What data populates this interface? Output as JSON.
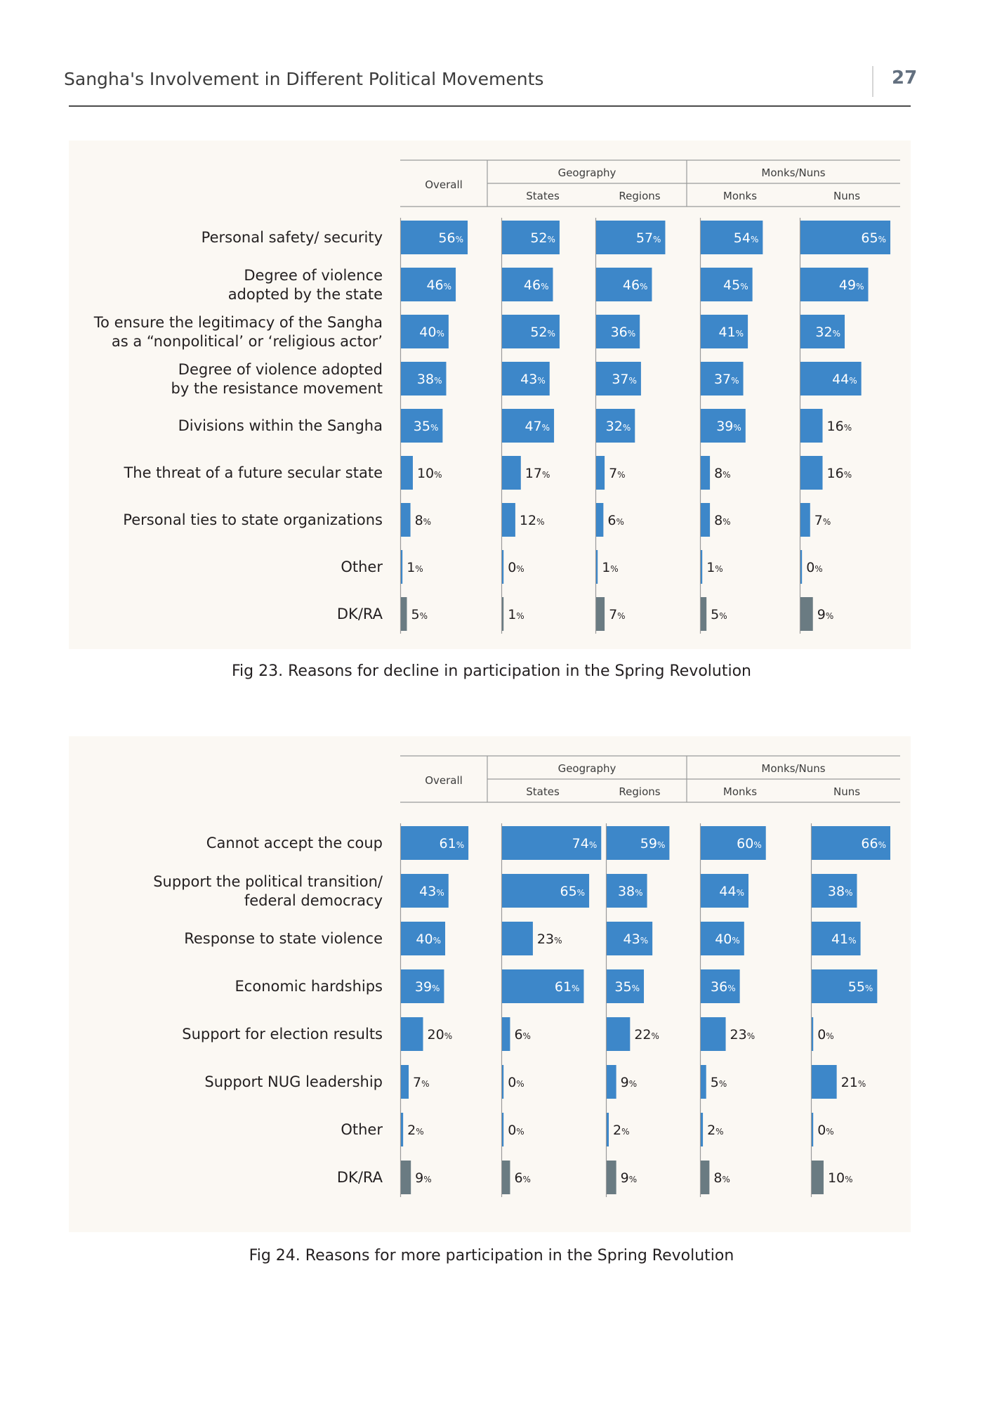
{
  "header": {
    "title": "Sangha's Involvement in Different Political Movements",
    "page_number": "27"
  },
  "colors": {
    "bar": "#3d87c9",
    "dk_bar": "#6a7b82",
    "panel_bg": "#fbf8f3",
    "rule": "#9a9a9a"
  },
  "chart_data": [
    {
      "type": "bar",
      "caption": "Fig 23. Reasons for decline in participation in the Spring Revolution",
      "unit": "%",
      "groups": [
        {
          "label": "Overall",
          "columns": [
            "Overall"
          ]
        },
        {
          "label": "Geography",
          "columns": [
            "States",
            "Regions"
          ]
        },
        {
          "label": "Monks/Nuns",
          "columns": [
            "Monks",
            "Nuns"
          ]
        }
      ],
      "columns": [
        "Overall",
        "States",
        "Regions",
        "Monks",
        "Nuns"
      ],
      "categories": [
        [
          "Personal safety/ security"
        ],
        [
          "Degree of violence",
          "adopted by the state"
        ],
        [
          "To ensure the legitimacy of the Sangha",
          "as a “nonpolitical’ or ‘religious actor’"
        ],
        [
          "Degree of violence adopted",
          "by the resistance movement"
        ],
        [
          "Divisions within the Sangha"
        ],
        [
          "The threat of a future secular state"
        ],
        [
          "Personal ties to state organizations"
        ],
        [
          "Other"
        ],
        [
          "DK/RA"
        ]
      ],
      "values": [
        [
          56,
          52,
          57,
          54,
          65
        ],
        [
          46,
          46,
          46,
          45,
          49
        ],
        [
          40,
          52,
          36,
          41,
          32
        ],
        [
          38,
          43,
          37,
          37,
          44
        ],
        [
          35,
          47,
          32,
          39,
          16
        ],
        [
          10,
          17,
          7,
          8,
          16
        ],
        [
          8,
          12,
          6,
          8,
          7
        ],
        [
          1,
          0,
          1,
          1,
          0
        ],
        [
          5,
          1,
          7,
          5,
          9
        ]
      ],
      "dk_row": 8
    },
    {
      "type": "bar",
      "caption": "Fig 24. Reasons for more participation in the Spring Revolution",
      "unit": "%",
      "groups": [
        {
          "label": "Overall",
          "columns": [
            "Overall"
          ]
        },
        {
          "label": "Geography",
          "columns": [
            "States",
            "Regions"
          ]
        },
        {
          "label": "Monks/Nuns",
          "columns": [
            "Monks",
            "Nuns"
          ]
        }
      ],
      "columns": [
        "Overall",
        "States",
        "Regions",
        "Monks",
        "Nuns"
      ],
      "categories": [
        [
          "Cannot accept the coup"
        ],
        [
          "Support the political transition/",
          "federal democracy"
        ],
        [
          "Response to state violence"
        ],
        [
          "Economic hardships"
        ],
        [
          "Support for election results"
        ],
        [
          "Support NUG leadership"
        ],
        [
          "Other"
        ],
        [
          "DK/RA"
        ]
      ],
      "values": [
        [
          61,
          74,
          59,
          60,
          66
        ],
        [
          43,
          65,
          38,
          44,
          38
        ],
        [
          40,
          23,
          43,
          40,
          41
        ],
        [
          39,
          61,
          35,
          36,
          55
        ],
        [
          20,
          6,
          22,
          23,
          0
        ],
        [
          7,
          0,
          9,
          5,
          21
        ],
        [
          2,
          0,
          2,
          2,
          0
        ],
        [
          9,
          6,
          9,
          8,
          10
        ]
      ],
      "dk_row": 7
    }
  ]
}
